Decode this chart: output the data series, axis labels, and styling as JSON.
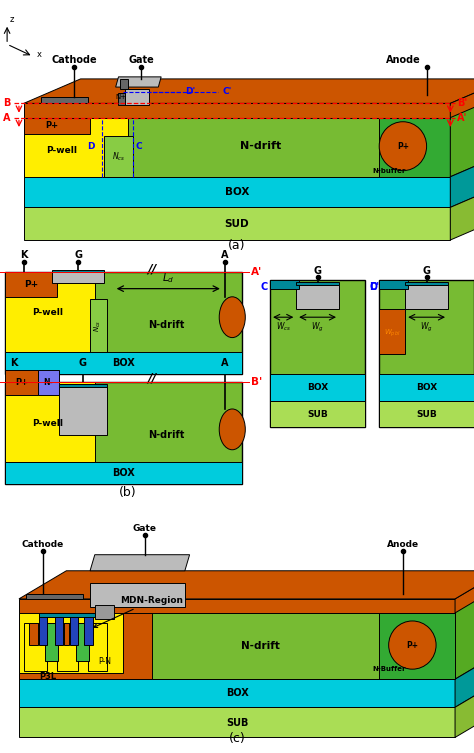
{
  "bg_color": "#ffffff",
  "fig_label_a": "(a)",
  "fig_label_b": "(b)",
  "fig_label_c": "(c)",
  "colors": {
    "orange": "#CC5500",
    "yellow": "#FFFF00",
    "n_drift": "#77BB33",
    "n_drift_dark": "#55AA22",
    "p_plus": "#CC5500",
    "p_well": "#FFEE00",
    "n_cs": "#88CC44",
    "box_color": "#00CCDD",
    "sub_color": "#AADD55",
    "n_buffer": "#33AA33",
    "n_buffer_dark": "#228822",
    "gate_gray": "#BBBBBB",
    "gate_dark": "#999999",
    "teal": "#008899",
    "dark_gray": "#666666",
    "blue_region": "#2244BB",
    "light_blue": "#44AACC",
    "cyan_bright": "#00DDEE",
    "white": "#FFFFFF",
    "black": "#000000",
    "red": "#FF0000",
    "blue": "#0000FF",
    "orange_text": "#FF8800"
  }
}
